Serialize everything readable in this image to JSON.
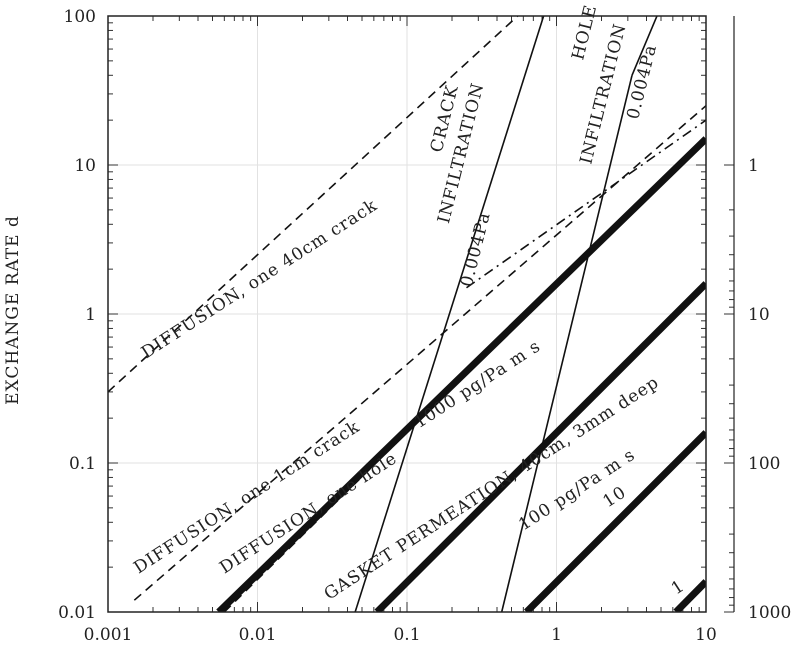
{
  "chart_data": {
    "type": "line",
    "xscale": "log",
    "yscale": "log",
    "xlim": [
      0.001,
      10
    ],
    "ylim": [
      0.01,
      100
    ],
    "grid": true,
    "xlabel": "",
    "ylabel": "EXCHANGE RATE d",
    "x_ticks": [
      "0.001",
      "0.01",
      "0.1",
      "1",
      "10"
    ],
    "y_ticks": [
      "0.01",
      "0.1",
      "1",
      "10",
      "100"
    ],
    "right_axis_ticks": [
      "1",
      "10",
      "100",
      "1000"
    ],
    "series": [
      {
        "style": "dashed",
        "weight": "thin",
        "x": [
          0.001,
          0.55
        ],
        "y": [
          0.3,
          100
        ]
      },
      {
        "style": "dashed",
        "weight": "thin",
        "x": [
          0.0015,
          10
        ],
        "y": [
          0.012,
          25
        ]
      },
      {
        "style": "dashed",
        "weight": "thin",
        "x": [
          0.006,
          10
        ],
        "y": [
          0.01,
          15
        ]
      },
      {
        "style": "dash-dot",
        "weight": "thin",
        "x": [
          0.25,
          10
        ],
        "y": [
          1.5,
          20
        ]
      },
      {
        "style": "solid",
        "weight": "thin",
        "x": [
          0.045,
          0.82
        ],
        "y": [
          0.01,
          100
        ]
      },
      {
        "style": "solid",
        "weight": "thin",
        "x": [
          0.43,
          3.2
        ],
        "y": [
          0.01,
          40
        ]
      },
      {
        "style": "solid",
        "weight": "thin",
        "x": [
          3.2,
          4.7
        ],
        "y": [
          40,
          100
        ]
      },
      {
        "style": "solid",
        "weight": "thick",
        "x": [
          0.0055,
          10
        ],
        "y": [
          0.01,
          15
        ]
      },
      {
        "style": "solid",
        "weight": "thick",
        "x": [
          0.063,
          10
        ],
        "y": [
          0.01,
          1.6
        ]
      },
      {
        "style": "solid",
        "weight": "thick",
        "x": [
          0.63,
          10
        ],
        "y": [
          0.01,
          0.16
        ]
      },
      {
        "style": "solid",
        "weight": "thick",
        "x": [
          6.3,
          10
        ],
        "y": [
          0.01,
          0.016
        ]
      }
    ],
    "annotations": [
      {
        "text": "DIFFUSION, one 40cm crack",
        "x": 0.0018,
        "y": 0.5,
        "angle": -33
      },
      {
        "text": "DIFFUSION, one 1cm crack",
        "x": 0.0016,
        "y": 0.018,
        "angle": -33
      },
      {
        "text": "DIFFUSION, one hole",
        "x": 0.006,
        "y": 0.018,
        "angle": -33
      },
      {
        "text": "1000 pg/Pa m s",
        "x": 0.12,
        "y": 0.17,
        "angle": -33
      },
      {
        "text": "GASKET PERMEATION, 40cm, 3mm deep",
        "x": 0.03,
        "y": 0.012,
        "angle": -33
      },
      {
        "text": "100 pg/Pa m s",
        "x": 0.6,
        "y": 0.035,
        "angle": -33
      },
      {
        "text": "10",
        "x": 2.2,
        "y": 0.05,
        "angle": -33
      },
      {
        "text": "1",
        "x": 6.3,
        "y": 0.013,
        "angle": -33
      },
      {
        "text": "CRACK",
        "x": 0.17,
        "y": 12,
        "angle": -76
      },
      {
        "text": "INFILTRATION",
        "x": 0.19,
        "y": 4,
        "angle": -76
      },
      {
        "text": "0.004Pa",
        "x": 0.27,
        "y": 1.5,
        "angle": -76
      },
      {
        "text": "HOLE",
        "x": 1.5,
        "y": 50,
        "angle": -76
      },
      {
        "text": "INFILTRATION",
        "x": 1.7,
        "y": 10,
        "angle": -76
      },
      {
        "text": "0.004Pa",
        "x": 3.5,
        "y": 20,
        "angle": -76
      }
    ]
  }
}
